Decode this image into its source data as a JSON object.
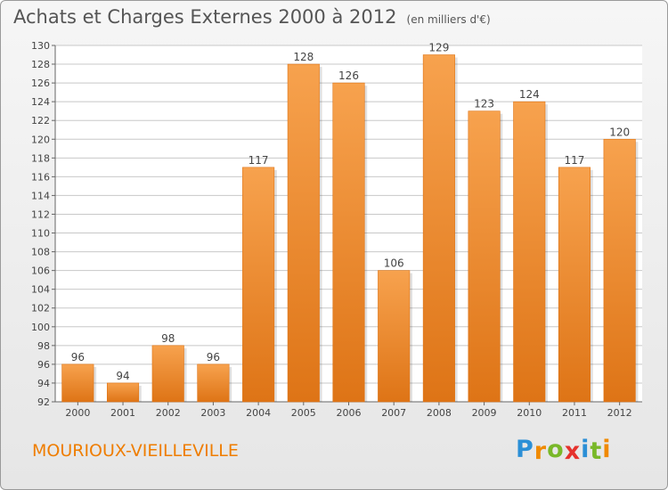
{
  "header": {
    "title": "Achats et Charges Externes 2000 à 2012",
    "unit": "(en milliers d'€)"
  },
  "footer": {
    "commune": "MOURIOUX-VIEILLEVILLE",
    "logo_letters": [
      "P",
      "r",
      "o",
      "x",
      "i",
      "t",
      "i"
    ],
    "logo_colors": [
      "#2b8fd6",
      "#f08a00",
      "#79b829",
      "#e5322d",
      "#2b8fd6",
      "#79b829",
      "#f08a00"
    ]
  },
  "colors": {
    "bar_top": "#f7a24e",
    "bar_bottom": "#de7416",
    "grid": "#c8c8c8",
    "text": "#444444"
  },
  "chart_data": {
    "type": "bar",
    "title": "Achats et Charges Externes 2000 à 2012",
    "subtitle": "(en milliers d'€)",
    "categories": [
      "2000",
      "2001",
      "2002",
      "2003",
      "2004",
      "2005",
      "2006",
      "2007",
      "2008",
      "2009",
      "2010",
      "2011",
      "2012"
    ],
    "values": [
      96,
      94,
      98,
      96,
      117,
      128,
      126,
      106,
      129,
      123,
      124,
      117,
      120
    ],
    "data_labels": [
      "96",
      "94",
      "98",
      "96",
      "117",
      "128",
      "126",
      "106",
      "129",
      "123",
      "124",
      "117",
      "120"
    ],
    "ylim": [
      92,
      130
    ],
    "yticks": [
      92,
      94,
      96,
      98,
      100,
      102,
      104,
      106,
      108,
      110,
      112,
      114,
      116,
      118,
      120,
      122,
      124,
      126,
      128,
      130
    ],
    "grid": true,
    "legend": "none"
  }
}
